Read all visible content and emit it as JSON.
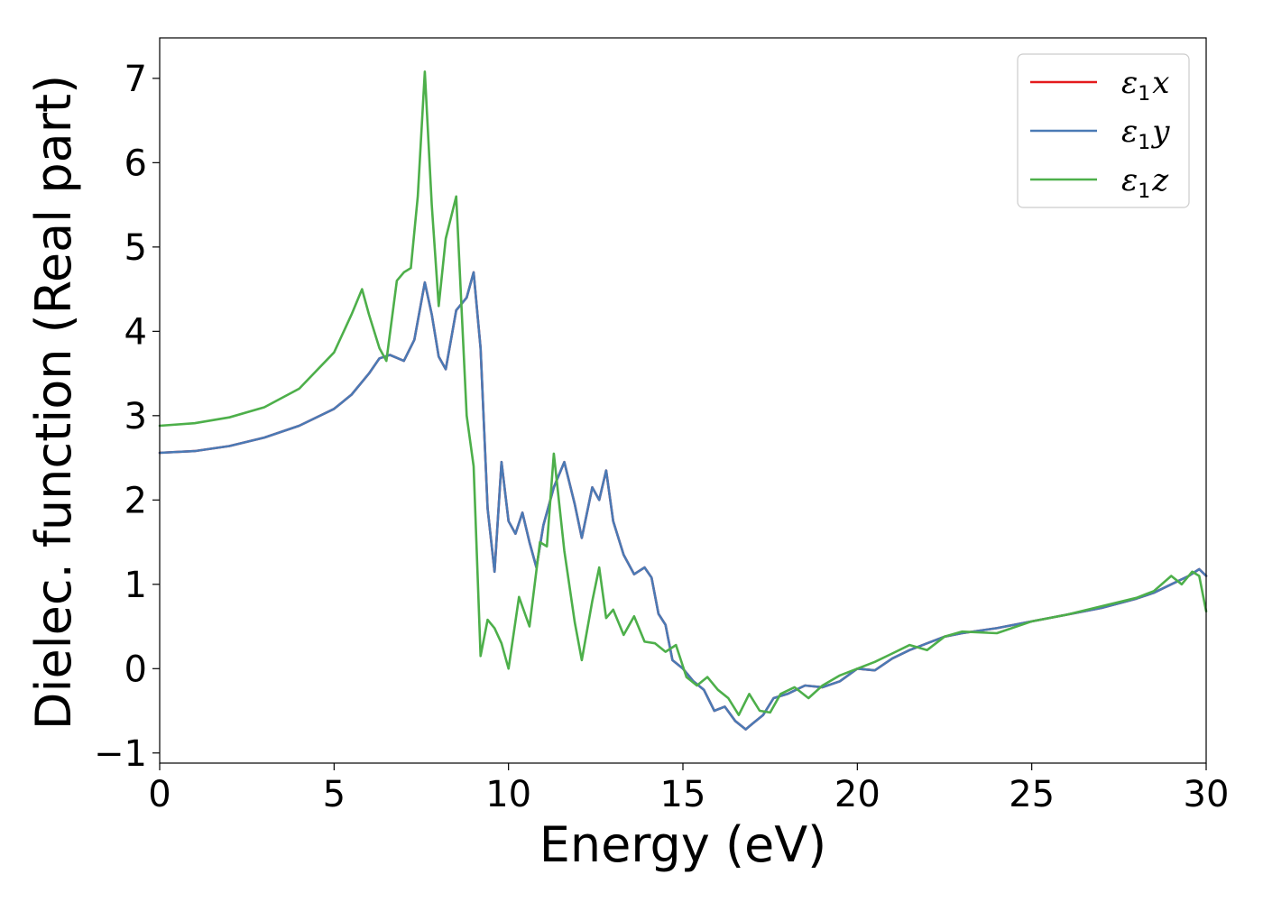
{
  "chart_data": {
    "type": "line",
    "xlabel": "Energy (eV)",
    "ylabel": "Dielec. function (Real part)",
    "xlim": [
      0,
      30
    ],
    "ylim": [
      -1.12,
      7.48
    ],
    "xticks": [
      0,
      5,
      10,
      15,
      20,
      25,
      30
    ],
    "xtick_labels": [
      "0",
      "5",
      "10",
      "15",
      "20",
      "25",
      "30"
    ],
    "yticks": [
      -1,
      0,
      1,
      2,
      3,
      4,
      5,
      6,
      7
    ],
    "ytick_labels": [
      "−1",
      "0",
      "1",
      "2",
      "3",
      "4",
      "5",
      "6",
      "7"
    ],
    "grid": false,
    "legend_position": "top-right",
    "series": [
      {
        "name": "ε₁x",
        "base": "ε",
        "sub": "1",
        "suffix": "x",
        "color": "#e41a1c",
        "x": [
          0,
          1,
          2,
          3,
          4,
          5,
          5.5,
          6,
          6.3,
          6.6,
          7,
          7.3,
          7.6,
          7.8,
          8,
          8.2,
          8.5,
          8.8,
          9,
          9.2,
          9.4,
          9.6,
          9.8,
          10,
          10.2,
          10.4,
          10.6,
          10.8,
          11,
          11.3,
          11.6,
          11.9,
          12.1,
          12.4,
          12.6,
          12.8,
          13,
          13.3,
          13.6,
          13.9,
          14.1,
          14.3,
          14.5,
          14.7,
          15,
          15.3,
          15.6,
          15.9,
          16.2,
          16.5,
          16.8,
          17,
          17.3,
          17.6,
          18,
          18.5,
          19,
          19.5,
          20,
          20.5,
          21,
          21.5,
          22,
          22.5,
          23,
          24,
          25,
          26,
          27,
          28,
          28.5,
          29,
          29.5,
          29.8,
          30
        ],
        "y": [
          2.56,
          2.58,
          2.64,
          2.74,
          2.88,
          3.08,
          3.25,
          3.5,
          3.68,
          3.72,
          3.65,
          3.9,
          4.58,
          4.2,
          3.7,
          3.55,
          4.25,
          4.4,
          4.7,
          3.8,
          1.9,
          1.15,
          2.45,
          1.75,
          1.6,
          1.85,
          1.5,
          1.2,
          1.7,
          2.15,
          2.45,
          1.95,
          1.55,
          2.15,
          2.0,
          2.35,
          1.75,
          1.35,
          1.12,
          1.2,
          1.08,
          0.65,
          0.52,
          0.1,
          0.0,
          -0.15,
          -0.25,
          -0.5,
          -0.45,
          -0.62,
          -0.72,
          -0.65,
          -0.55,
          -0.35,
          -0.3,
          -0.2,
          -0.22,
          -0.15,
          0.0,
          -0.02,
          0.12,
          0.22,
          0.3,
          0.38,
          0.42,
          0.48,
          0.56,
          0.64,
          0.72,
          0.83,
          0.9,
          1.0,
          1.1,
          1.18,
          1.1
        ]
      },
      {
        "name": "ε₁y",
        "base": "ε",
        "sub": "1",
        "suffix": "y",
        "color": "#4a7ab5",
        "x": [
          0,
          1,
          2,
          3,
          4,
          5,
          5.5,
          6,
          6.3,
          6.6,
          7,
          7.3,
          7.6,
          7.8,
          8,
          8.2,
          8.5,
          8.8,
          9,
          9.2,
          9.4,
          9.6,
          9.8,
          10,
          10.2,
          10.4,
          10.6,
          10.8,
          11,
          11.3,
          11.6,
          11.9,
          12.1,
          12.4,
          12.6,
          12.8,
          13,
          13.3,
          13.6,
          13.9,
          14.1,
          14.3,
          14.5,
          14.7,
          15,
          15.3,
          15.6,
          15.9,
          16.2,
          16.5,
          16.8,
          17,
          17.3,
          17.6,
          18,
          18.5,
          19,
          19.5,
          20,
          20.5,
          21,
          21.5,
          22,
          22.5,
          23,
          24,
          25,
          26,
          27,
          28,
          28.5,
          29,
          29.5,
          29.8,
          30
        ],
        "y": [
          2.56,
          2.58,
          2.64,
          2.74,
          2.88,
          3.08,
          3.25,
          3.5,
          3.68,
          3.72,
          3.65,
          3.9,
          4.58,
          4.2,
          3.7,
          3.55,
          4.25,
          4.4,
          4.7,
          3.8,
          1.9,
          1.15,
          2.45,
          1.75,
          1.6,
          1.85,
          1.5,
          1.2,
          1.7,
          2.15,
          2.45,
          1.95,
          1.55,
          2.15,
          2.0,
          2.35,
          1.75,
          1.35,
          1.12,
          1.2,
          1.08,
          0.65,
          0.52,
          0.1,
          0.0,
          -0.15,
          -0.25,
          -0.5,
          -0.45,
          -0.62,
          -0.72,
          -0.65,
          -0.55,
          -0.35,
          -0.3,
          -0.2,
          -0.22,
          -0.15,
          0.0,
          -0.02,
          0.12,
          0.22,
          0.3,
          0.38,
          0.42,
          0.48,
          0.56,
          0.64,
          0.72,
          0.83,
          0.9,
          1.0,
          1.1,
          1.18,
          1.1
        ]
      },
      {
        "name": "ε₁z",
        "base": "ε",
        "sub": "1",
        "suffix": "z",
        "color": "#4daf4a",
        "x": [
          0,
          1,
          2,
          3,
          4,
          5,
          5.5,
          5.8,
          6.0,
          6.3,
          6.5,
          6.8,
          7.0,
          7.2,
          7.4,
          7.6,
          7.8,
          8.0,
          8.2,
          8.5,
          8.8,
          9.0,
          9.2,
          9.4,
          9.6,
          9.8,
          10.0,
          10.3,
          10.6,
          10.9,
          11.1,
          11.3,
          11.6,
          11.9,
          12.1,
          12.4,
          12.6,
          12.8,
          13.0,
          13.3,
          13.6,
          13.9,
          14.2,
          14.5,
          14.8,
          15.1,
          15.4,
          15.7,
          16.0,
          16.3,
          16.6,
          16.9,
          17.2,
          17.5,
          17.8,
          18.2,
          18.6,
          19.0,
          19.5,
          20.0,
          20.5,
          21.0,
          21.5,
          22.0,
          22.5,
          23.0,
          24.0,
          25.0,
          26.0,
          27.0,
          28.0,
          28.5,
          29.0,
          29.3,
          29.6,
          29.8,
          30.0
        ],
        "y": [
          2.88,
          2.91,
          2.98,
          3.1,
          3.32,
          3.75,
          4.2,
          4.5,
          4.2,
          3.8,
          3.65,
          4.6,
          4.7,
          4.75,
          5.6,
          7.08,
          5.5,
          4.3,
          5.1,
          5.6,
          3.0,
          2.4,
          0.15,
          0.58,
          0.48,
          0.3,
          0.0,
          0.85,
          0.5,
          1.5,
          1.45,
          2.55,
          1.4,
          0.55,
          0.1,
          0.8,
          1.2,
          0.6,
          0.7,
          0.4,
          0.62,
          0.32,
          0.3,
          0.2,
          0.28,
          -0.1,
          -0.2,
          -0.1,
          -0.25,
          -0.35,
          -0.55,
          -0.3,
          -0.5,
          -0.52,
          -0.3,
          -0.22,
          -0.35,
          -0.2,
          -0.08,
          0.0,
          0.08,
          0.18,
          0.28,
          0.22,
          0.38,
          0.44,
          0.42,
          0.56,
          0.64,
          0.74,
          0.84,
          0.92,
          1.1,
          1.0,
          1.15,
          1.1,
          0.68
        ]
      }
    ]
  }
}
